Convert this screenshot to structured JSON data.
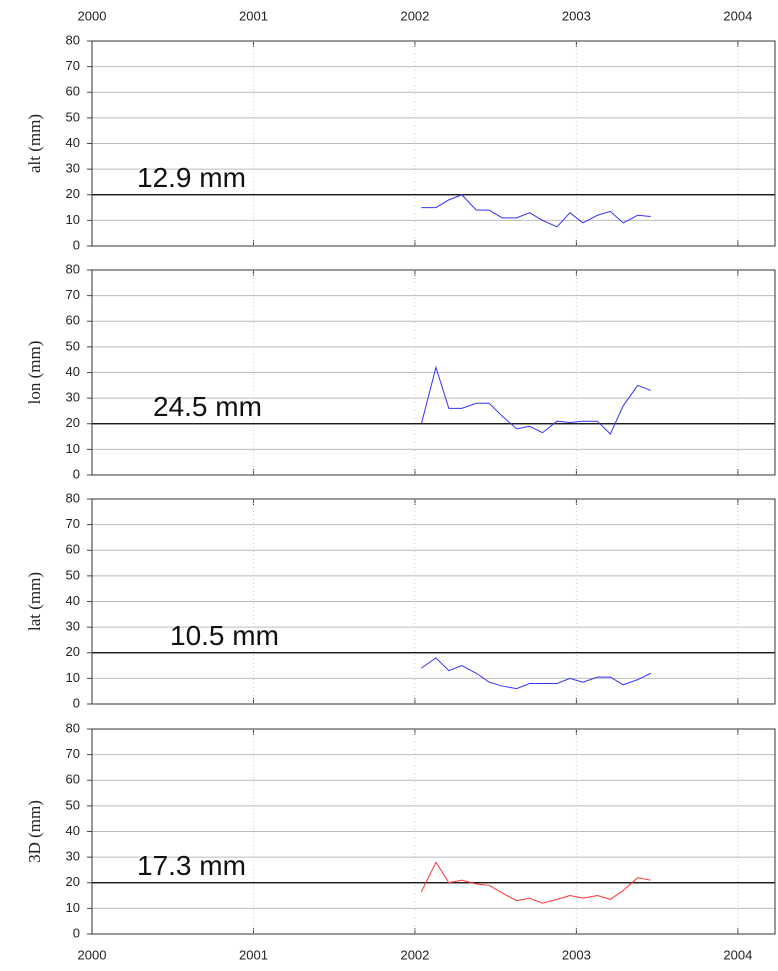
{
  "chart_data": [
    {
      "type": "line",
      "ylabel": "alt (mm)",
      "annotation": "12.9 mm",
      "ref_line": 20,
      "xlim": [
        2000,
        2004.23
      ],
      "xticks": [
        2000,
        2001,
        2002,
        2003,
        2004
      ],
      "ylim": [
        0,
        80
      ],
      "yticks": [
        0,
        10,
        20,
        30,
        40,
        50,
        60,
        70,
        80
      ],
      "grid": true,
      "x": [
        2002.04,
        2002.13,
        2002.21,
        2002.29,
        2002.38,
        2002.46,
        2002.54,
        2002.63,
        2002.71,
        2002.79,
        2002.88,
        2002.96,
        2003.04,
        2003.13,
        2003.21,
        2003.29,
        2003.38,
        2003.46
      ],
      "series": [
        {
          "color": "#3333ff",
          "values": [
            15,
            15,
            18,
            20,
            14,
            14,
            11,
            11,
            13,
            10,
            7.5,
            13,
            9,
            12,
            13.5,
            9,
            12,
            11.5
          ]
        }
      ]
    },
    {
      "type": "line",
      "ylabel": "lon (mm)",
      "annotation": "24.5 mm",
      "ref_line": 20,
      "xlim": [
        2000,
        2004.23
      ],
      "xticks": [
        2000,
        2001,
        2002,
        2003,
        2004
      ],
      "ylim": [
        0,
        80
      ],
      "yticks": [
        0,
        10,
        20,
        30,
        40,
        50,
        60,
        70,
        80
      ],
      "grid": true,
      "x": [
        2002.04,
        2002.13,
        2002.21,
        2002.29,
        2002.38,
        2002.46,
        2002.54,
        2002.63,
        2002.71,
        2002.79,
        2002.88,
        2002.96,
        2003.04,
        2003.13,
        2003.21,
        2003.29,
        2003.38,
        2003.46
      ],
      "series": [
        {
          "color": "#3333ff",
          "values": [
            20,
            42,
            26,
            26,
            28,
            28,
            23,
            18,
            19,
            16.5,
            21,
            20.5,
            21,
            21,
            16,
            27,
            35,
            33
          ]
        }
      ]
    },
    {
      "type": "line",
      "ylabel": "lat (mm)",
      "annotation": "10.5 mm",
      "ref_line": 20,
      "xlim": [
        2000,
        2004.23
      ],
      "xticks": [
        2000,
        2001,
        2002,
        2003,
        2004
      ],
      "ylim": [
        0,
        80
      ],
      "yticks": [
        0,
        10,
        20,
        30,
        40,
        50,
        60,
        70,
        80
      ],
      "grid": true,
      "x": [
        2002.04,
        2002.13,
        2002.21,
        2002.29,
        2002.38,
        2002.46,
        2002.54,
        2002.63,
        2002.71,
        2002.79,
        2002.88,
        2002.96,
        2003.04,
        2003.13,
        2003.21,
        2003.29,
        2003.38,
        2003.46
      ],
      "series": [
        {
          "color": "#3333ff",
          "values": [
            14,
            18,
            13,
            15,
            12,
            8.5,
            7,
            6,
            8,
            8,
            8,
            10,
            8.5,
            10.5,
            10.5,
            7.5,
            9.5,
            12
          ]
        }
      ]
    },
    {
      "type": "line",
      "ylabel": "3D (mm)",
      "annotation": "17.3 mm",
      "ref_line": 20,
      "xlim": [
        2000,
        2004.23
      ],
      "xticks": [
        2000,
        2001,
        2002,
        2003,
        2004
      ],
      "ylim": [
        0,
        80
      ],
      "yticks": [
        0,
        10,
        20,
        30,
        40,
        50,
        60,
        70,
        80
      ],
      "grid": true,
      "x": [
        2002.04,
        2002.13,
        2002.21,
        2002.29,
        2002.38,
        2002.46,
        2002.54,
        2002.63,
        2002.71,
        2002.79,
        2002.88,
        2002.96,
        2003.04,
        2003.13,
        2003.21,
        2003.29,
        2003.38,
        2003.46
      ],
      "series": [
        {
          "color": "#ff3333",
          "values": [
            16.5,
            28,
            20,
            21,
            19.5,
            19,
            16,
            13,
            14,
            12,
            13.5,
            15,
            14,
            15,
            13.5,
            17,
            22,
            21
          ]
        }
      ]
    }
  ]
}
